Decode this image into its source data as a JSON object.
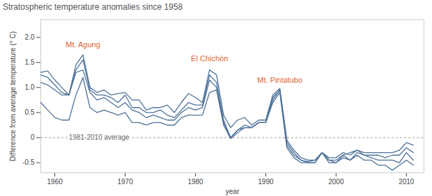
{
  "chart_data": {
    "type": "line",
    "title": "Stratospheric temperature anomalies since 1958",
    "x_label": "year",
    "y_label": "Difference from average temperature (° C)",
    "x": [
      1958,
      1959,
      1960,
      1961,
      1962,
      1963,
      1964,
      1965,
      1966,
      1967,
      1968,
      1969,
      1970,
      1971,
      1972,
      1973,
      1974,
      1975,
      1976,
      1977,
      1978,
      1979,
      1980,
      1981,
      1982,
      1983,
      1984,
      1985,
      1986,
      1987,
      1988,
      1989,
      1990,
      1991,
      1992,
      1993,
      1994,
      1995,
      1996,
      1997,
      1998,
      1999,
      2000,
      2001,
      2002,
      2003,
      2004,
      2005,
      2006,
      2007,
      2008,
      2009,
      2010,
      2011
    ],
    "series": [
      {
        "color": "#4d7199",
        "values": [
          1.3,
          1.33,
          1.15,
          1.0,
          0.85,
          1.45,
          1.65,
          1.0,
          0.9,
          0.95,
          0.85,
          0.88,
          0.9,
          0.75,
          0.75,
          0.55,
          0.6,
          0.6,
          0.65,
          0.5,
          0.7,
          0.88,
          0.8,
          0.7,
          1.35,
          1.25,
          0.45,
          0.2,
          0.35,
          0.4,
          0.25,
          0.35,
          0.35,
          0.85,
          0.98,
          -0.05,
          -0.25,
          -0.4,
          -0.45,
          -0.45,
          -0.3,
          -0.4,
          -0.4,
          -0.3,
          -0.35,
          -0.25,
          -0.3,
          -0.3,
          -0.3,
          -0.3,
          -0.3,
          -0.25,
          -0.1,
          -0.15
        ]
      },
      {
        "color": "#4d7199",
        "values": [
          1.25,
          1.2,
          1.05,
          0.9,
          0.85,
          1.35,
          1.55,
          0.95,
          0.85,
          0.85,
          0.8,
          0.7,
          0.85,
          0.6,
          0.6,
          0.5,
          0.5,
          0.55,
          0.45,
          0.4,
          0.55,
          0.7,
          0.65,
          0.65,
          1.25,
          1.1,
          0.35,
          0.0,
          0.15,
          0.25,
          0.2,
          0.3,
          0.3,
          0.8,
          0.95,
          -0.1,
          -0.3,
          -0.45,
          -0.48,
          -0.45,
          -0.3,
          -0.45,
          -0.45,
          -0.35,
          -0.3,
          -0.25,
          -0.35,
          -0.35,
          -0.35,
          -0.4,
          -0.35,
          -0.35,
          -0.2,
          -0.3
        ]
      },
      {
        "color": "#4d7199",
        "values": [
          1.1,
          1.05,
          0.95,
          0.85,
          0.85,
          1.3,
          1.35,
          0.9,
          0.75,
          0.8,
          0.7,
          0.6,
          0.7,
          0.55,
          0.5,
          0.4,
          0.45,
          0.4,
          0.35,
          0.35,
          0.5,
          0.6,
          0.55,
          0.6,
          1.15,
          1.0,
          0.3,
          0.0,
          0.15,
          0.2,
          0.2,
          0.3,
          0.3,
          0.75,
          0.95,
          -0.15,
          -0.35,
          -0.45,
          -0.5,
          -0.5,
          -0.3,
          -0.5,
          -0.5,
          -0.35,
          -0.45,
          -0.3,
          -0.35,
          -0.4,
          -0.45,
          -0.45,
          -0.45,
          -0.5,
          -0.3,
          -0.45
        ]
      },
      {
        "color": "#4d7199",
        "values": [
          0.7,
          0.55,
          0.4,
          0.35,
          0.35,
          0.85,
          1.2,
          0.6,
          0.5,
          0.55,
          0.5,
          0.45,
          0.5,
          0.3,
          0.3,
          0.25,
          0.3,
          0.3,
          0.25,
          0.25,
          0.4,
          0.45,
          0.45,
          0.45,
          0.9,
          0.95,
          0.25,
          -0.02,
          0.1,
          0.2,
          0.2,
          0.3,
          0.3,
          0.7,
          0.9,
          -0.2,
          -0.4,
          -0.5,
          -0.5,
          -0.5,
          -0.3,
          -0.45,
          -0.5,
          -0.4,
          -0.45,
          -0.35,
          -0.45,
          -0.45,
          -0.55,
          -0.55,
          -0.65,
          -0.55,
          -0.45,
          -0.55
        ]
      }
    ],
    "xlim": [
      1958,
      2012.5
    ],
    "xticks": [
      1960,
      1970,
      1980,
      1990,
      2000,
      2010
    ],
    "ylim": [
      -0.7,
      2.35
    ],
    "yticks": [
      -0.5,
      0,
      0.5,
      {
        "value": 1,
        "label": "1.0"
      },
      1.5,
      {
        "value": 2,
        "label": "2.0"
      }
    ],
    "grid": false,
    "annotations": [
      {
        "text": "Mt. Agung",
        "x": 1964,
        "y": 1.85,
        "color": "#e0622f"
      },
      {
        "text": "El Chichón",
        "x": 1982,
        "y": 1.57,
        "color": "#e0622f"
      },
      {
        "text": "Mt. Pintatubo",
        "x": 1992,
        "y": 1.15,
        "color": "#e0622f"
      }
    ],
    "reference_line": {
      "value": 0,
      "label": "1981-2010 average",
      "label_x": 1962
    }
  }
}
